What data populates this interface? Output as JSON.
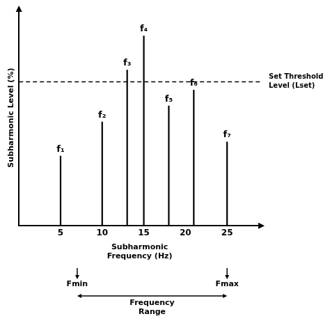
{
  "chart_data": {
    "type": "stem",
    "xlabel": [
      "Subharmonic",
      "Frequency (Hz)"
    ],
    "ylabel": "Subharmonic Level (%)",
    "x": [
      5,
      10,
      13,
      15,
      18,
      21,
      25
    ],
    "values": [
      0.35,
      0.52,
      0.78,
      0.95,
      0.6,
      0.68,
      0.42
    ],
    "point_labels": [
      "f₁",
      "f₂",
      "f₃",
      "f₄",
      "f₅",
      "f₆",
      "f₇"
    ],
    "threshold": {
      "value": 0.72,
      "label": [
        "Set Threshold",
        "Level (Lset)"
      ]
    },
    "markers": [
      {
        "x": 7,
        "label": "Fmin"
      },
      {
        "x": 25,
        "label": "Fmax"
      }
    ],
    "range_label": [
      "Frequency",
      "Range"
    ],
    "xlim": [
      0,
      29
    ],
    "ylim": [
      0,
      1.08
    ],
    "xticks": [
      5,
      10,
      15,
      20,
      25
    ],
    "tick_labels": "x",
    "grid": false,
    "color": "#000000"
  }
}
